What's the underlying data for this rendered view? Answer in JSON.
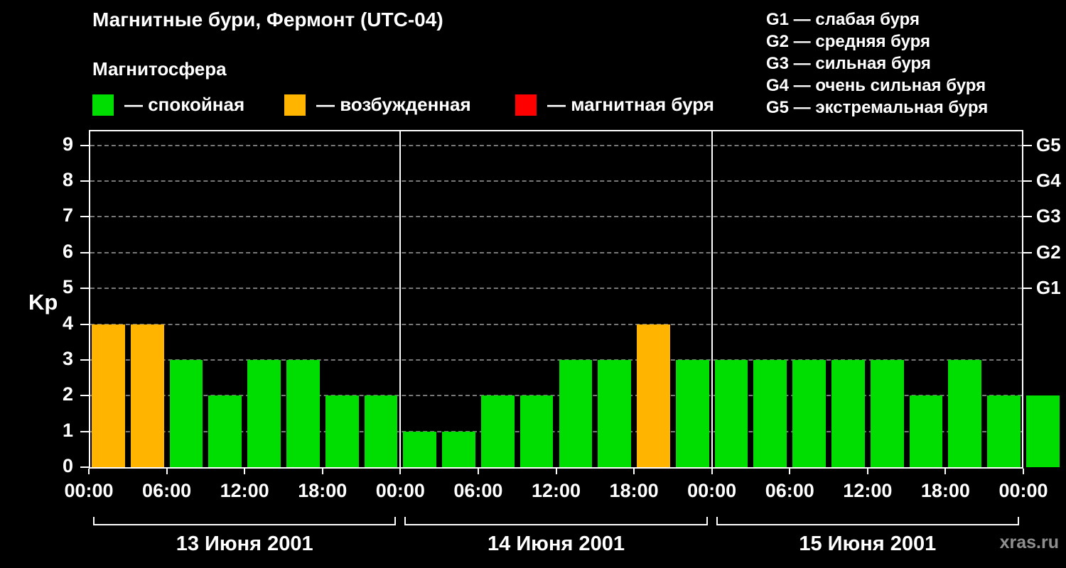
{
  "title": "Магнитные бури, Фермонт (UTC-04)",
  "legend": {
    "heading": "Магнитосфера",
    "items": [
      {
        "id": "quiet",
        "label": "— спокойная",
        "color": "#00dd00"
      },
      {
        "id": "excited",
        "label": "— возбужденная",
        "color": "#ffb400"
      },
      {
        "id": "storm",
        "label": "— магнитная буря",
        "color": "#ff0000"
      }
    ]
  },
  "storm_scale": [
    "G1 — слабая буря",
    "G2 — средняя буря",
    "G3 — сильная буря",
    "G4 — очень сильная буря",
    "G5 — экстремальная буря"
  ],
  "watermark": "xras.ru",
  "chart_data": {
    "type": "bar",
    "title": "Магнитные бури, Фермонт (UTC-04)",
    "ylabel": "Kp",
    "ylim": [
      0,
      9.43
    ],
    "yticks": [
      0,
      1,
      2,
      3,
      4,
      5,
      6,
      7,
      8,
      9
    ],
    "right_axis": [
      {
        "value": 5,
        "label": "G1"
      },
      {
        "value": 6,
        "label": "G2"
      },
      {
        "value": 7,
        "label": "G3"
      },
      {
        "value": 8,
        "label": "G4"
      },
      {
        "value": 9,
        "label": "G5"
      }
    ],
    "grid": "dashed horizontal",
    "legend_position": "top",
    "bar_interval_hours": 3,
    "bar_colors": {
      "quiet": "#00dd00",
      "excited": "#ffb400",
      "storm": "#ff0000"
    },
    "xticks": [
      {
        "hour": 0,
        "label": "00:00"
      },
      {
        "hour": 6,
        "label": "06:00"
      },
      {
        "hour": 12,
        "label": "12:00"
      },
      {
        "hour": 18,
        "label": "18:00"
      },
      {
        "hour": 24,
        "label": "00:00"
      },
      {
        "hour": 30,
        "label": "06:00"
      },
      {
        "hour": 36,
        "label": "12:00"
      },
      {
        "hour": 42,
        "label": "18:00"
      },
      {
        "hour": 48,
        "label": "00:00"
      },
      {
        "hour": 54,
        "label": "06:00"
      },
      {
        "hour": 60,
        "label": "12:00"
      },
      {
        "hour": 66,
        "label": "18:00"
      },
      {
        "hour": 72,
        "label": "00:00"
      }
    ],
    "days": [
      {
        "label": "13 Июня 2001",
        "start_hour": 0,
        "end_hour": 24
      },
      {
        "label": "14 Июня 2001",
        "start_hour": 24,
        "end_hour": 48
      },
      {
        "label": "15 Июня 2001",
        "start_hour": 48,
        "end_hour": 72
      }
    ],
    "bars": [
      {
        "hour": 0,
        "kp": 4,
        "state": "excited"
      },
      {
        "hour": 3,
        "kp": 4,
        "state": "excited"
      },
      {
        "hour": 6,
        "kp": 3,
        "state": "quiet"
      },
      {
        "hour": 9,
        "kp": 2,
        "state": "quiet"
      },
      {
        "hour": 12,
        "kp": 3,
        "state": "quiet"
      },
      {
        "hour": 15,
        "kp": 3,
        "state": "quiet"
      },
      {
        "hour": 18,
        "kp": 2,
        "state": "quiet"
      },
      {
        "hour": 21,
        "kp": 2,
        "state": "quiet"
      },
      {
        "hour": 24,
        "kp": 1,
        "state": "quiet"
      },
      {
        "hour": 27,
        "kp": 1,
        "state": "quiet"
      },
      {
        "hour": 30,
        "kp": 2,
        "state": "quiet"
      },
      {
        "hour": 33,
        "kp": 2,
        "state": "quiet"
      },
      {
        "hour": 36,
        "kp": 3,
        "state": "quiet"
      },
      {
        "hour": 39,
        "kp": 3,
        "state": "quiet"
      },
      {
        "hour": 42,
        "kp": 4,
        "state": "excited"
      },
      {
        "hour": 45,
        "kp": 3,
        "state": "quiet"
      },
      {
        "hour": 48,
        "kp": 3,
        "state": "quiet"
      },
      {
        "hour": 51,
        "kp": 3,
        "state": "quiet"
      },
      {
        "hour": 54,
        "kp": 3,
        "state": "quiet"
      },
      {
        "hour": 57,
        "kp": 3,
        "state": "quiet"
      },
      {
        "hour": 60,
        "kp": 3,
        "state": "quiet"
      },
      {
        "hour": 63,
        "kp": 2,
        "state": "quiet"
      },
      {
        "hour": 66,
        "kp": 3,
        "state": "quiet"
      },
      {
        "hour": 69,
        "kp": 2,
        "state": "quiet"
      },
      {
        "hour": 72,
        "kp": 2,
        "state": "quiet",
        "partial": true
      }
    ]
  }
}
